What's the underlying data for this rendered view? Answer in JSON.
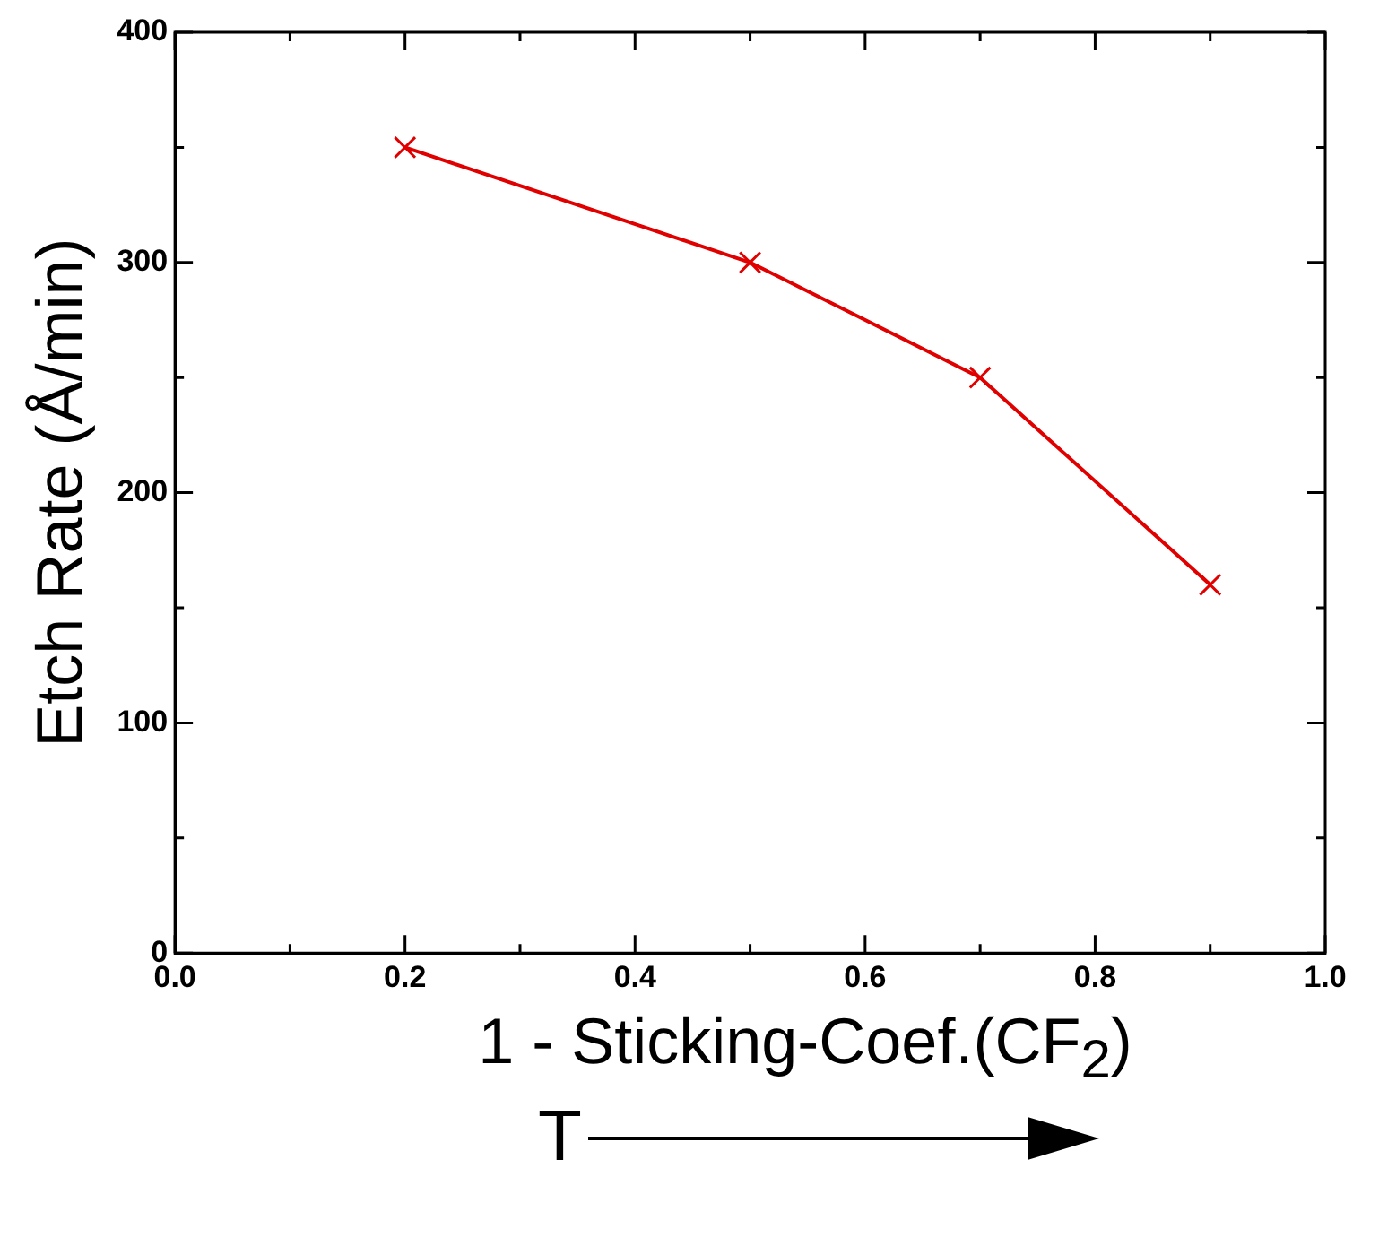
{
  "chart_data": {
    "type": "line",
    "xlabel": "1 - Sticking-Coef.(CF$_{2}$)",
    "ylabel": "Etch Rate (Å/min)",
    "x": [
      0.2,
      0.5,
      0.7,
      0.9
    ],
    "series": [
      {
        "color": "#e00000",
        "values": [
          350,
          300,
          250,
          160
        ]
      }
    ],
    "xlim": [
      0,
      1
    ],
    "ylim": [
      0,
      400
    ],
    "xticks": [
      {
        "value": 0,
        "label": "0.0"
      },
      {
        "value": 0.1,
        "label": null
      },
      {
        "value": 0.2,
        "label": "0.2"
      },
      {
        "value": 0.3,
        "label": null
      },
      {
        "value": 0.4,
        "label": "0.4"
      },
      {
        "value": 0.5,
        "label": null
      },
      {
        "value": 0.6,
        "label": "0.6"
      },
      {
        "value": 0.7,
        "label": null
      },
      {
        "value": 0.8,
        "label": "0.8"
      },
      {
        "value": 0.9,
        "label": null
      },
      {
        "value": 1,
        "label": "1.0"
      }
    ],
    "yticks": [
      0,
      {
        "value": 50,
        "label": null
      },
      100,
      {
        "value": 150,
        "label": null
      },
      200,
      {
        "value": 250,
        "label": null
      },
      300,
      {
        "value": 350,
        "label": null
      },
      400
    ],
    "marker": "cross",
    "line_style": "solid",
    "grid": false,
    "legend": false,
    "annotations": [
      "T"
    ]
  }
}
